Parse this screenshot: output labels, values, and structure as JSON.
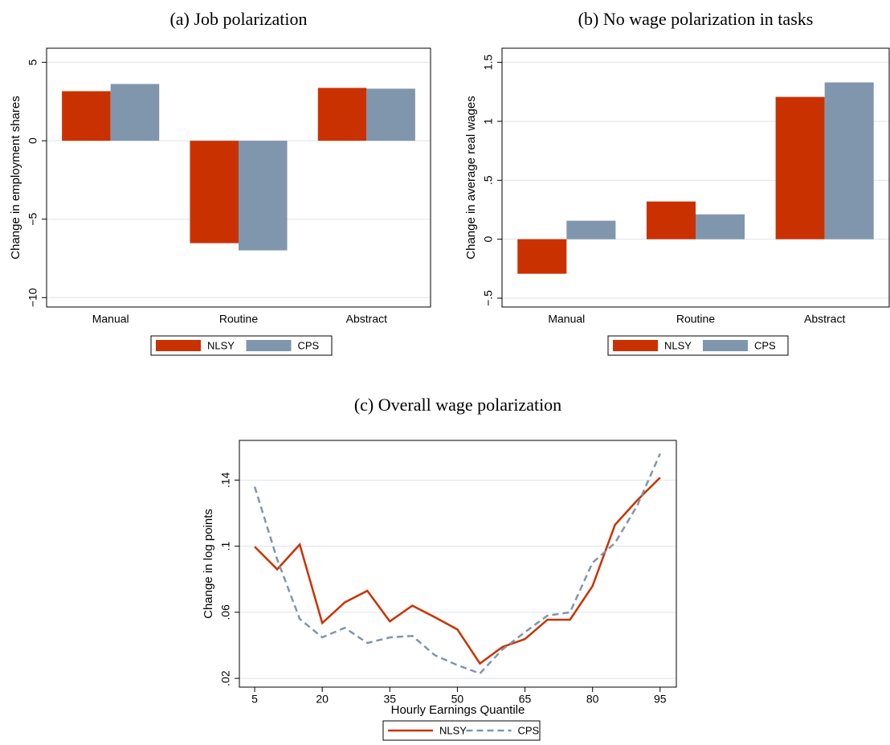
{
  "chart_data": [
    {
      "type": "bar",
      "title": "(a) Job polarization",
      "ylabel": "Change in employment shares",
      "categories": [
        "Manual",
        "Routine",
        "Abstract"
      ],
      "series": [
        {
          "name": "NLSY",
          "color": "#c93200",
          "values": [
            3.16,
            -6.53,
            3.37
          ]
        },
        {
          "name": "CPS",
          "color": "#7f96ad",
          "values": [
            3.62,
            -6.99,
            3.32
          ]
        }
      ],
      "ylim": [
        -10.6,
        5.9
      ],
      "yticks": [
        5,
        0,
        {
          "value": -5,
          "label": "−5"
        },
        {
          "value": -10,
          "label": "−10"
        }
      ],
      "grid": true
    },
    {
      "type": "bar",
      "title": "(b) No wage polarization in tasks",
      "ylabel": "Change in average real wages",
      "categories": [
        "Manual",
        "Routine",
        "Abstract"
      ],
      "series": [
        {
          "name": "NLSY",
          "color": "#c93200",
          "values": [
            -0.293,
            0.32,
            1.207
          ]
        },
        {
          "name": "CPS",
          "color": "#7f96ad",
          "values": [
            0.157,
            0.211,
            1.33
          ]
        }
      ],
      "ylim": [
        -0.575,
        1.62
      ],
      "yticks": [
        1.5,
        1,
        {
          "value": 0.5,
          "label": ".5"
        },
        0,
        {
          "value": -0.5,
          "label": "−.5"
        }
      ],
      "grid": true
    },
    {
      "type": "line",
      "title": "(c) Overall wage polarization",
      "xlabel": "Hourly Earnings Quantile",
      "ylabel": "Change in log points",
      "x": [
        5,
        10,
        15,
        20,
        25,
        30,
        35,
        40,
        45,
        50,
        55,
        60,
        65,
        70,
        75,
        80,
        85,
        90,
        95
      ],
      "series": [
        {
          "name": "NLSY",
          "color": "#c93200",
          "dashed": false,
          "values": [
            0.0997,
            0.086,
            0.101,
            0.0535,
            0.066,
            0.073,
            0.0545,
            0.064,
            0.057,
            0.0496,
            0.029,
            0.039,
            0.0438,
            0.0555,
            0.0555,
            0.0759,
            0.113,
            0.128,
            0.1415
          ]
        },
        {
          "name": "CPS",
          "color": "#7f96ad",
          "dashed": true,
          "values": [
            0.136,
            0.092,
            0.056,
            0.0448,
            0.0506,
            0.0414,
            0.0448,
            0.0457,
            0.034,
            0.028,
            0.023,
            0.0375,
            0.048,
            0.058,
            0.06,
            0.09,
            0.102,
            0.125,
            0.156
          ]
        }
      ],
      "xlim": [
        1.6,
        98.6
      ],
      "xticks": [
        5,
        20,
        35,
        50,
        65,
        80,
        95
      ],
      "ylim": [
        0.0147,
        0.164
      ],
      "yticks": [
        {
          "value": 0.02,
          "label": ".02"
        },
        {
          "value": 0.06,
          "label": ".06"
        },
        {
          "value": 0.1,
          "label": ".1"
        },
        {
          "value": 0.14,
          "label": ".14"
        }
      ],
      "grid": true
    }
  ]
}
